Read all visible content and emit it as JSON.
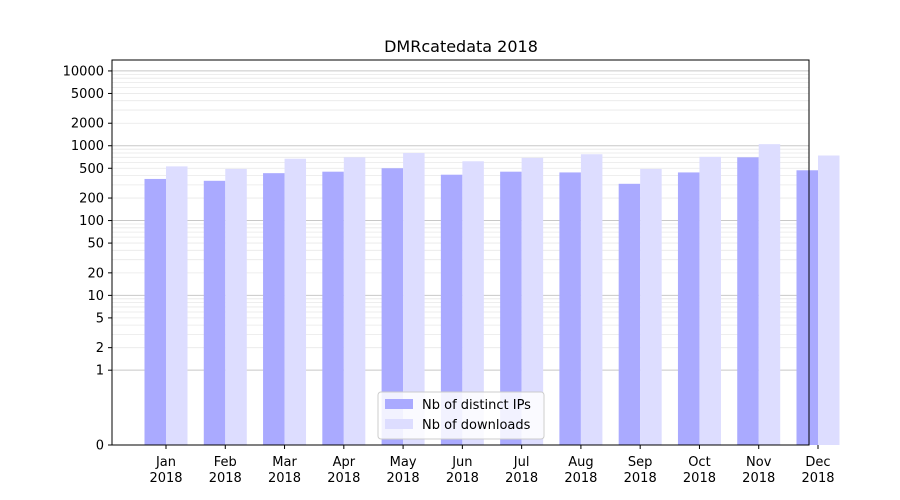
{
  "chart_data": {
    "type": "bar",
    "title": "DMRcatedata 2018",
    "xlabel": "",
    "ylabel": "",
    "y_scale": "symlog",
    "ylim": [
      0,
      14000
    ],
    "y_ticks": [
      0,
      1,
      2,
      5,
      10,
      20,
      50,
      100,
      200,
      500,
      1000,
      2000,
      5000,
      10000
    ],
    "categories": [
      "Jan\n2018",
      "Feb\n2018",
      "Mar\n2018",
      "Apr\n2018",
      "May\n2018",
      "Jun\n2018",
      "Jul\n2018",
      "Aug\n2018",
      "Sep\n2018",
      "Oct\n2018",
      "Nov\n2018",
      "Dec\n2018"
    ],
    "series": [
      {
        "name": "Nb of distinct IPs",
        "color": "#aaaaff",
        "values": [
          360,
          340,
          430,
          450,
          500,
          410,
          450,
          440,
          310,
          440,
          700,
          470
        ]
      },
      {
        "name": "Nb of downloads",
        "color": "#ddddff",
        "values": [
          530,
          490,
          670,
          700,
          800,
          620,
          690,
          770,
          490,
          710,
          1050,
          740
        ]
      }
    ],
    "legend_position": "bottom-center",
    "grid": true
  }
}
